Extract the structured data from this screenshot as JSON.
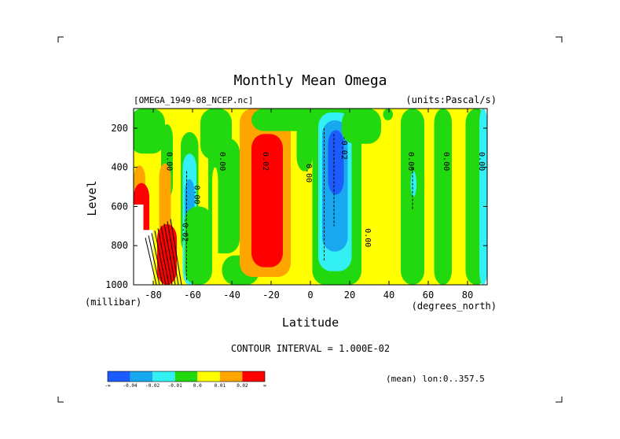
{
  "chart_data": {
    "type": "heatmap",
    "title": "Monthly Mean Omega",
    "source_label": "[OMEGA_1949-08_NCEP.nc]",
    "units_label": "(units:Pascal/s)",
    "xlabel": "Latitude",
    "ylabel": "Level",
    "x_unit_label": "(degrees_north)",
    "y_unit_label": "(millibar)",
    "xlim": [
      -90,
      90
    ],
    "ylim": [
      1000,
      100
    ],
    "x_ticks": [
      -80,
      -60,
      -40,
      -20,
      0,
      20,
      40,
      60,
      80
    ],
    "x_tick_labels": [
      "-80",
      "-60",
      "-40",
      "-20",
      "0",
      "20",
      "40",
      "60",
      "80"
    ],
    "y_ticks": [
      200,
      400,
      600,
      800,
      1000
    ],
    "y_tick_labels": [
      "200",
      "400",
      "600",
      "800",
      "1000"
    ],
    "contour_interval_label": "CONTOUR INTERVAL = 1.000E-02",
    "mean_label": "(mean) lon:0..357.5",
    "contour_labels": [
      {
        "text": "0.00",
        "x": -73,
        "y": 370
      },
      {
        "text": "0.00",
        "x": -46,
        "y": 370
      },
      {
        "text": "0.00",
        "x": -59,
        "y": 540
      },
      {
        "text": "-0.02",
        "x": -65,
        "y": 720
      },
      {
        "text": "0.02",
        "x": -24,
        "y": 370
      },
      {
        "text": "0.00",
        "x": -2,
        "y": 430
      },
      {
        "text": "-0.02",
        "x": 16,
        "y": 300
      },
      {
        "text": "0.00",
        "x": 28,
        "y": 760
      },
      {
        "text": "0.00",
        "x": 50,
        "y": 370
      },
      {
        "text": "0.00",
        "x": 68,
        "y": 370
      },
      {
        "text": "0.00",
        "x": 86,
        "y": 370
      }
    ],
    "colorbar": {
      "colors": [
        "#1c5cff",
        "#18a8f0",
        "#33f0f5",
        "#22d80e",
        "#ffff00",
        "#ffa500",
        "#ff0000"
      ],
      "tick_labels": [
        "-∞",
        "-0.04",
        "-0.02",
        "-0.01",
        "0.0",
        "0.01",
        "0.02",
        "∞"
      ]
    },
    "bands": [
      {
        "color": "#ffff00",
        "lat": [
          -90,
          90
        ],
        "lev": [
          100,
          1000
        ]
      },
      {
        "color": "#22d80e",
        "lat": [
          -92,
          -74
        ],
        "lev": [
          100,
          330
        ]
      },
      {
        "color": "#22d80e",
        "lat": [
          -76,
          -70
        ],
        "lev": [
          180,
          560
        ]
      },
      {
        "color": "#22d80e",
        "lat": [
          -66,
          -57
        ],
        "lev": [
          220,
          840
        ]
      },
      {
        "color": "#33f0f5",
        "lat": [
          -65,
          -58
        ],
        "lev": [
          330,
          1000
        ]
      },
      {
        "color": "#18a8f0",
        "lat": [
          -64,
          -59
        ],
        "lev": [
          460,
          900
        ]
      },
      {
        "color": "#22d80e",
        "lat": [
          -64,
          -50
        ],
        "lev": [
          600,
          1000
        ]
      },
      {
        "color": "#22d80e",
        "lat": [
          -56,
          -40
        ],
        "lev": [
          100,
          360
        ]
      },
      {
        "color": "#22d80e",
        "lat": [
          -52,
          -36
        ],
        "lev": [
          250,
          840
        ]
      },
      {
        "color": "#22d80e",
        "lat": [
          -45,
          -26
        ],
        "lev": [
          850,
          1000
        ]
      },
      {
        "color": "#ffa500",
        "lat": [
          -36,
          -10
        ],
        "lev": [
          100,
          960
        ]
      },
      {
        "color": "#ff0000",
        "lat": [
          -30,
          -14
        ],
        "lev": [
          230,
          910
        ]
      },
      {
        "color": "#ffa500",
        "lat": [
          -77,
          -71
        ],
        "lev": [
          380,
          760
        ]
      },
      {
        "color": "#ffa500",
        "lat": [
          -90,
          -84
        ],
        "lev": [
          390,
          700
        ]
      },
      {
        "color": "#ff0000",
        "lat": [
          -90,
          -82
        ],
        "lev": [
          480,
          1000
        ]
      },
      {
        "color": "#ff0000",
        "lat": [
          -78,
          -68
        ],
        "lev": [
          690,
          1000
        ]
      },
      {
        "color": "#ffa500",
        "lat": [
          -7,
          -1
        ],
        "lev": [
          100,
          200
        ]
      },
      {
        "color": "#22d80e",
        "lat": [
          -30,
          22
        ],
        "lev": [
          100,
          215
        ]
      },
      {
        "color": "#22d80e",
        "lat": [
          -7,
          1
        ],
        "lev": [
          160,
          420
        ]
      },
      {
        "color": "#22d80e",
        "lat": [
          1,
          26
        ],
        "lev": [
          100,
          1000
        ]
      },
      {
        "color": "#33f0f5",
        "lat": [
          4,
          21
        ],
        "lev": [
          120,
          930
        ]
      },
      {
        "color": "#18a8f0",
        "lat": [
          6,
          19
        ],
        "lev": [
          160,
          830
        ]
      },
      {
        "color": "#1c5cff",
        "lat": [
          9,
          17
        ],
        "lev": [
          210,
          540
        ]
      },
      {
        "color": "#22d80e",
        "lat": [
          16,
          36
        ],
        "lev": [
          100,
          280
        ]
      },
      {
        "color": "#22d80e",
        "lat": [
          37,
          42
        ],
        "lev": [
          100,
          160
        ]
      },
      {
        "color": "#22d80e",
        "lat": [
          46,
          58
        ],
        "lev": [
          100,
          1000
        ]
      },
      {
        "color": "#33f0f5",
        "lat": [
          51,
          54
        ],
        "lev": [
          420,
          550
        ]
      },
      {
        "color": "#22d80e",
        "lat": [
          63,
          72
        ],
        "lev": [
          100,
          1000
        ]
      },
      {
        "color": "#22d80e",
        "lat": [
          79,
          90
        ],
        "lev": [
          100,
          1000
        ]
      },
      {
        "color": "#33f0f5",
        "lat": [
          86,
          90
        ],
        "lev": [
          100,
          1000
        ]
      },
      {
        "color": "#ffff00",
        "lat": [
          -50,
          -47
        ],
        "lev": [
          400,
          900
        ]
      }
    ],
    "missing_region": [
      {
        "lat": [
          -90,
          -85
        ],
        "lev": [
          590,
          1000
        ]
      },
      {
        "lat": [
          -85,
          -80
        ],
        "lev": [
          720,
          1000
        ]
      }
    ]
  }
}
